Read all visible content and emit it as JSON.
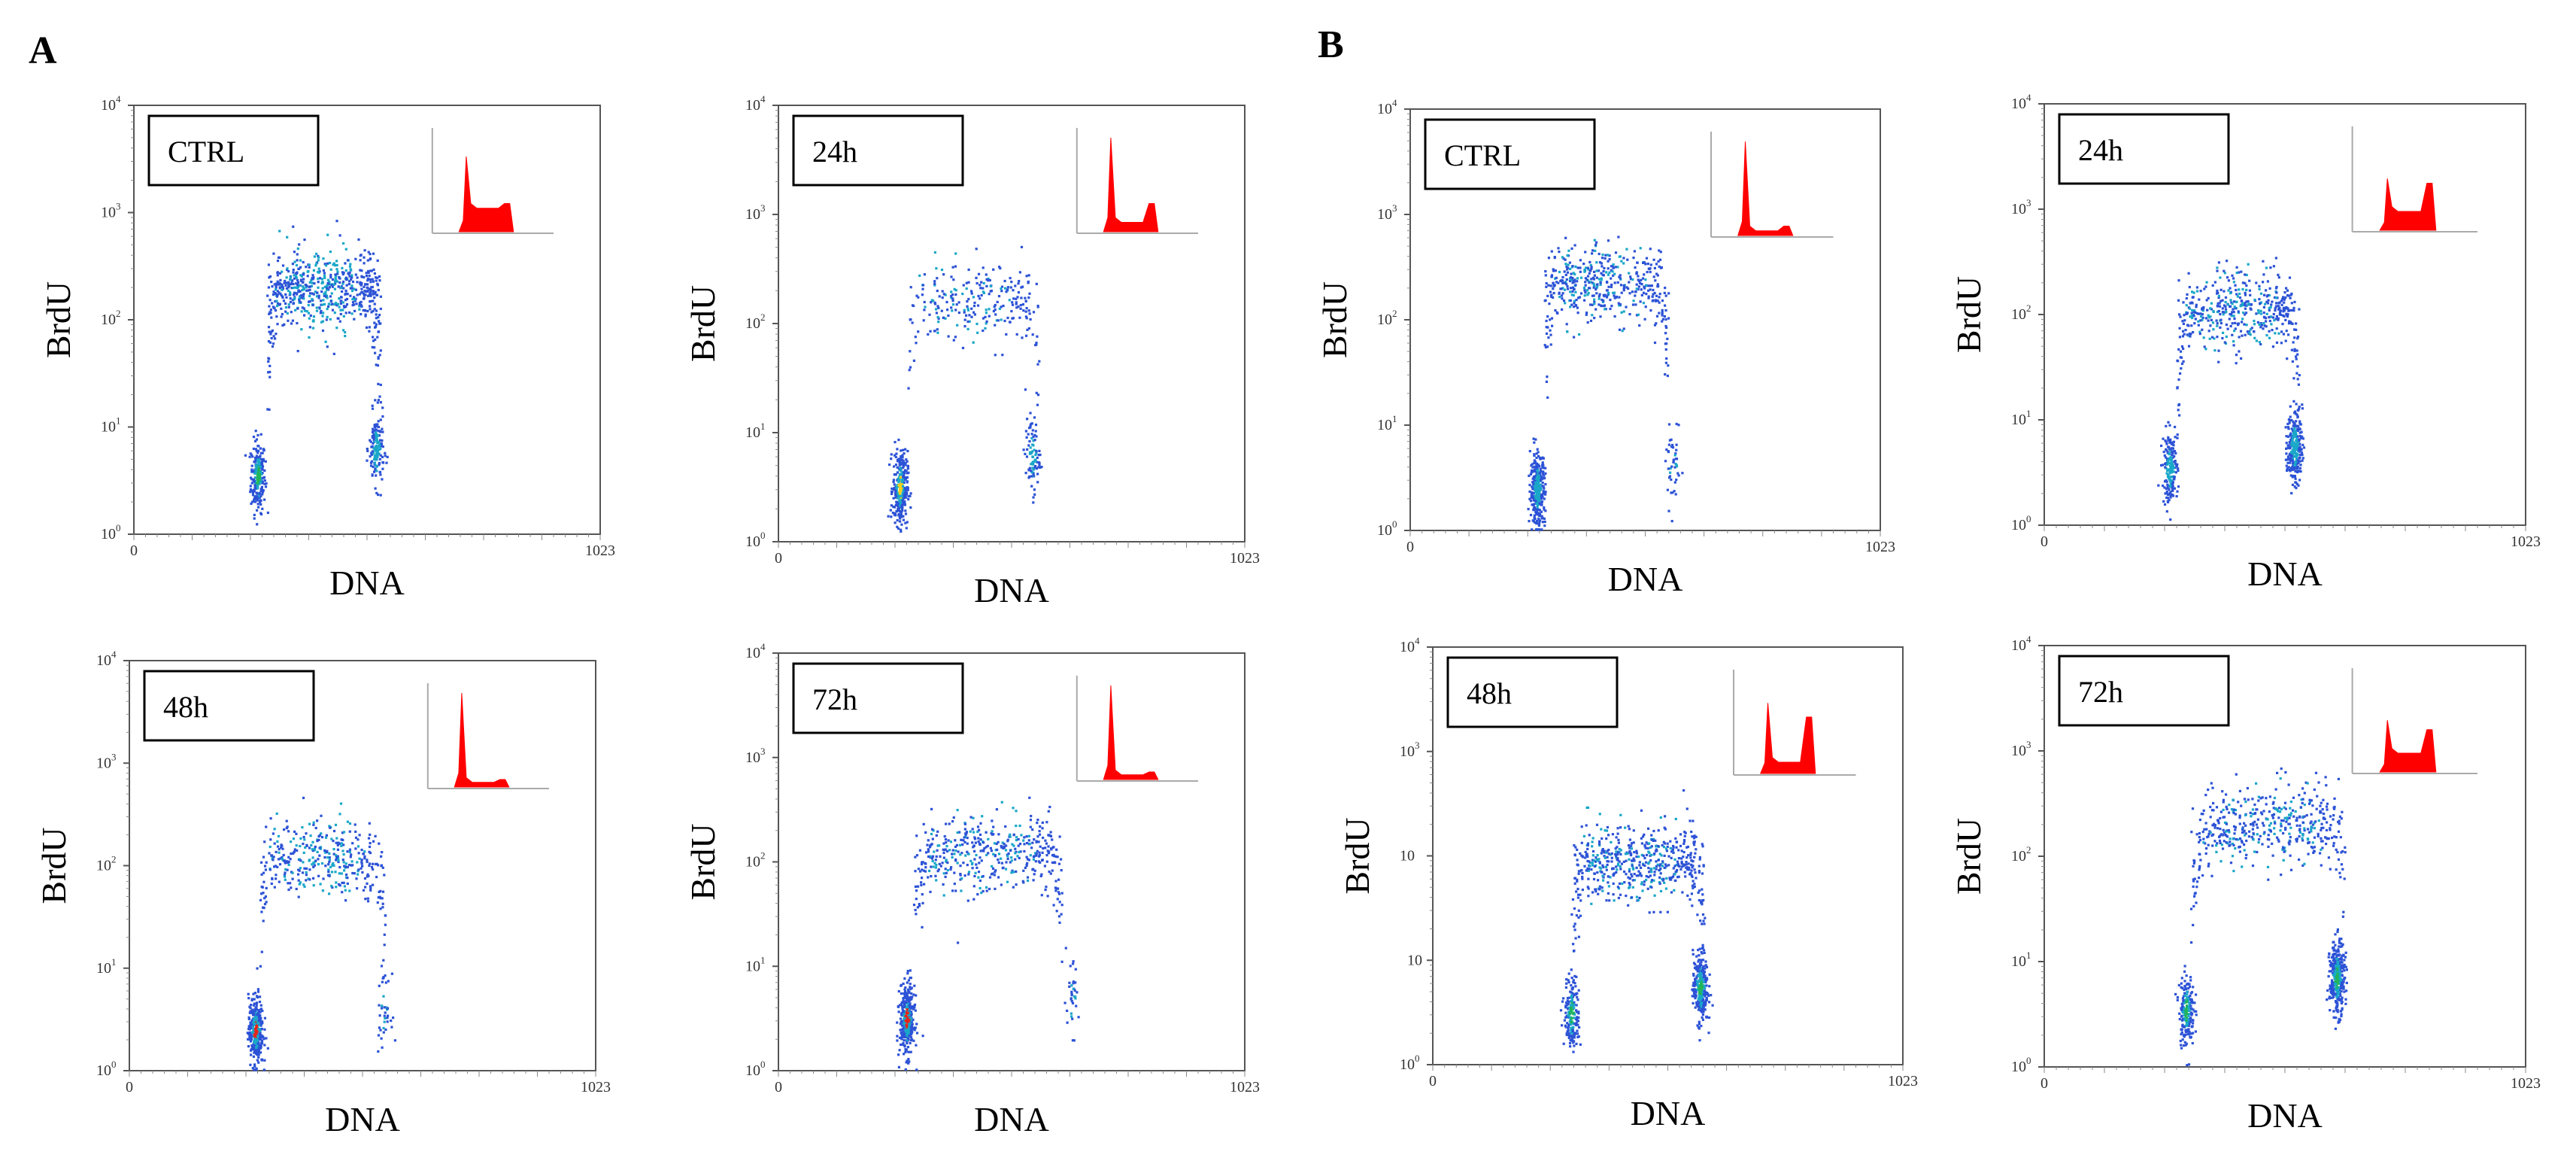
{
  "panels": [
    {
      "letter": "A"
    },
    {
      "letter": "B"
    }
  ],
  "chart_data": [
    {
      "type": "scatter",
      "panel": "A",
      "label": "CTRL",
      "title": "",
      "xlabel": "DNA",
      "ylabel": "BrdU",
      "x_range": [
        0,
        1023
      ],
      "x_ticks": [
        "0",
        "1023"
      ],
      "y_scale": "log",
      "y_range": [
        1,
        10000
      ],
      "y_tick_exponents": [
        "0",
        "1",
        "2",
        "3",
        "4"
      ],
      "clusters": [
        {
          "name": "G1",
          "dna": 270,
          "brdu_log": 0.55,
          "count": 220,
          "peak_color": "#22b55a"
        },
        {
          "name": "S-phase arc",
          "dna_range": [
            290,
            540
          ],
          "brdu_log": 2.3,
          "count": 650,
          "peak_color": "#1aa7c8"
        },
        {
          "name": "G2/M",
          "dna": 530,
          "brdu_log": 0.8,
          "count": 160,
          "peak_color": "#1aa7c8"
        }
      ],
      "inset_histogram": {
        "type": "area",
        "color": "#ff0000",
        "g1_height": 0.8,
        "s_height": 0.25,
        "g2_height": 0.3
      }
    },
    {
      "type": "scatter",
      "panel": "A",
      "label": "24h",
      "title": "",
      "xlabel": "DNA",
      "ylabel": "BrdU",
      "x_range": [
        0,
        1023
      ],
      "x_ticks": [
        "0",
        "1023"
      ],
      "y_scale": "log",
      "y_range": [
        1,
        10000
      ],
      "y_tick_exponents": [
        "0",
        "1",
        "2",
        "3",
        "4"
      ],
      "clusters": [
        {
          "name": "G1",
          "dna": 265,
          "brdu_log": 0.5,
          "count": 300,
          "peak_color": "#f2d11a"
        },
        {
          "name": "S-phase arc",
          "dna_range": [
            280,
            570
          ],
          "brdu_log": 2.2,
          "count": 260,
          "peak_color": "#2c52d6"
        },
        {
          "name": "G2/M",
          "dna": 555,
          "brdu_log": 0.8,
          "count": 90,
          "peak_color": "#1aa7c8"
        }
      ],
      "inset_histogram": {
        "type": "area",
        "color": "#ff0000",
        "g1_height": 1.0,
        "s_height": 0.1,
        "g2_height": 0.3
      }
    },
    {
      "type": "scatter",
      "panel": "A",
      "label": "48h",
      "title": "",
      "xlabel": "DNA",
      "ylabel": "BrdU",
      "x_range": [
        0,
        1023
      ],
      "x_ticks": [
        "0",
        "1023"
      ],
      "y_scale": "log",
      "y_range": [
        1,
        10000
      ],
      "y_tick_exponents": [
        "0",
        "1",
        "2",
        "3",
        "4"
      ],
      "clusters": [
        {
          "name": "G1",
          "dna": 275,
          "brdu_log": 0.4,
          "count": 320,
          "peak_color": "#e8231a"
        },
        {
          "name": "S-phase arc",
          "dna_range": [
            285,
            560
          ],
          "brdu_log": 2.1,
          "count": 380,
          "peak_color": "#1aa7c8"
        },
        {
          "name": "G2/M",
          "dna": 555,
          "brdu_log": 0.6,
          "count": 40,
          "peak_color": "#2c52d6"
        }
      ],
      "inset_histogram": {
        "type": "area",
        "color": "#ff0000",
        "g1_height": 1.0,
        "s_height": 0.05,
        "g2_height": 0.08
      }
    },
    {
      "type": "scatter",
      "panel": "A",
      "label": "72h",
      "title": "",
      "xlabel": "DNA",
      "ylabel": "BrdU",
      "x_range": [
        0,
        1023
      ],
      "x_ticks": [
        "0",
        "1023"
      ],
      "y_scale": "log",
      "y_range": [
        1,
        10000
      ],
      "y_tick_exponents": [
        "0",
        "1",
        "2",
        "3",
        "4"
      ],
      "clusters": [
        {
          "name": "G1",
          "dna": 280,
          "brdu_log": 0.5,
          "count": 350,
          "peak_color": "#e8231a"
        },
        {
          "name": "S-phase arc",
          "dna_range": [
            295,
            620
          ],
          "brdu_log": 2.1,
          "count": 450,
          "peak_color": "#2c52d6"
        },
        {
          "name": "G2/M",
          "dna": 640,
          "brdu_log": 0.7,
          "count": 35,
          "peak_color": "#2c52d6"
        }
      ],
      "inset_histogram": {
        "type": "area",
        "color": "#ff0000",
        "g1_height": 1.0,
        "s_height": 0.05,
        "g2_height": 0.08
      }
    },
    {
      "type": "scatter",
      "panel": "B",
      "label": "CTRL",
      "title": "",
      "xlabel": "DNA",
      "ylabel": "BrdU",
      "x_range": [
        0,
        1023
      ],
      "x_ticks": [
        "0",
        "1023"
      ],
      "y_scale": "log",
      "y_range": [
        1,
        10000
      ],
      "y_tick_exponents": [
        "0",
        "1",
        "2",
        "3",
        "4"
      ],
      "clusters": [
        {
          "name": "G1",
          "dna": 275,
          "brdu_log": 0.4,
          "count": 320,
          "peak_color": "#1aa7c8"
        },
        {
          "name": "S-phase arc",
          "dna_range": [
            290,
            560
          ],
          "brdu_log": 2.35,
          "count": 480,
          "peak_color": "#2c52d6"
        },
        {
          "name": "G2/M",
          "dna": 570,
          "brdu_log": 0.6,
          "count": 45,
          "peak_color": "#2c52d6"
        }
      ],
      "inset_histogram": {
        "type": "area",
        "color": "#ff0000",
        "g1_height": 1.0,
        "s_height": 0.05,
        "g2_height": 0.1
      }
    },
    {
      "type": "scatter",
      "panel": "B",
      "label": "24h",
      "title": "",
      "xlabel": "DNA",
      "ylabel": "BrdU",
      "x_range": [
        0,
        1023
      ],
      "x_ticks": [
        "0",
        "1023"
      ],
      "y_scale": "log",
      "y_range": [
        1,
        10000
      ],
      "y_tick_exponents": [
        "0",
        "1",
        "2",
        "3",
        "4"
      ],
      "clusters": [
        {
          "name": "G1",
          "dna": 265,
          "brdu_log": 0.55,
          "count": 180,
          "peak_color": "#1aa7c8"
        },
        {
          "name": "S-phase arc",
          "dna_range": [
            280,
            540
          ],
          "brdu_log": 2.05,
          "count": 480,
          "peak_color": "#2c52d6"
        },
        {
          "name": "G2/M",
          "dna": 530,
          "brdu_log": 0.75,
          "count": 250,
          "peak_color": "#1aa7c8"
        }
      ],
      "inset_histogram": {
        "type": "area",
        "color": "#ff0000",
        "g1_height": 0.55,
        "s_height": 0.2,
        "g2_height": 0.5
      }
    },
    {
      "type": "scatter",
      "panel": "B",
      "label": "48h",
      "title": "",
      "xlabel": "DNA",
      "ylabel": "BrdU",
      "x_range": [
        0,
        1023
      ],
      "x_ticks": [
        "0",
        "1023"
      ],
      "y_scale": "log",
      "y_range": [
        1,
        10000
      ],
      "y_tick_exponents": [
        "0",
        "1",
        "",
        "3",
        "4"
      ],
      "y_tick_text_overrides": {
        "1": "10"
      },
      "clusters": [
        {
          "name": "G1",
          "dna": 300,
          "brdu_log": 0.5,
          "count": 180,
          "peak_color": "#22b55a"
        },
        {
          "name": "S-phase arc",
          "dna_range": [
            300,
            590
          ],
          "brdu_log": 1.95,
          "count": 560,
          "peak_color": "#2c52d6"
        },
        {
          "name": "G2/M",
          "dna": 580,
          "brdu_log": 0.75,
          "count": 280,
          "peak_color": "#22b55a"
        }
      ],
      "inset_histogram": {
        "type": "area",
        "color": "#ff0000",
        "g1_height": 0.75,
        "s_height": 0.12,
        "g2_height": 0.6
      }
    },
    {
      "type": "scatter",
      "panel": "B",
      "label": "72h",
      "title": "",
      "xlabel": "DNA",
      "ylabel": "BrdU",
      "x_range": [
        0,
        1023
      ],
      "x_ticks": [
        "0",
        "1023"
      ],
      "y_scale": "log",
      "y_range": [
        1,
        10000
      ],
      "y_tick_exponents": [
        "0",
        "1",
        "2",
        "3",
        "4"
      ],
      "clusters": [
        {
          "name": "G1",
          "dna": 300,
          "brdu_log": 0.55,
          "count": 200,
          "peak_color": "#22b55a"
        },
        {
          "name": "S-phase arc",
          "dna_range": [
            310,
            640
          ],
          "brdu_log": 2.3,
          "count": 480,
          "peak_color": "#2c52d6"
        },
        {
          "name": "G2/M",
          "dna": 620,
          "brdu_log": 0.85,
          "count": 330,
          "peak_color": "#22b55a"
        }
      ],
      "inset_histogram": {
        "type": "area",
        "color": "#ff0000",
        "g1_height": 0.55,
        "s_height": 0.2,
        "g2_height": 0.45
      }
    }
  ]
}
